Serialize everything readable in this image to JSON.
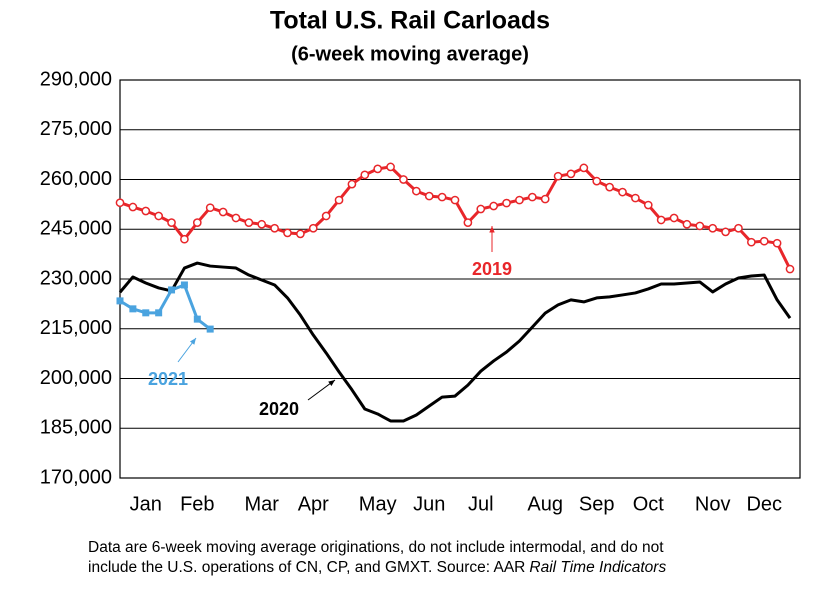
{
  "chart_data": {
    "type": "line",
    "title": "Total U.S. Rail Carloads",
    "subtitle": "(6-week moving average)",
    "note": [
      "Data are 6-week moving average originations, do not include intermodal, and do not",
      "include the U.S. operations of CN, CP, and GMXT.   Source: AAR"
    ],
    "note_italic": "Rail Time Indicators",
    "categories": [
      null,
      null,
      "Jan",
      null,
      null,
      null,
      "Feb",
      null,
      null,
      null,
      null,
      "Mar",
      null,
      null,
      null,
      "Apr",
      null,
      null,
      null,
      null,
      "May",
      null,
      null,
      null,
      "Jun",
      null,
      null,
      null,
      "Jul",
      null,
      null,
      null,
      null,
      "Aug",
      null,
      null,
      null,
      "Sep",
      null,
      null,
      null,
      "Oct",
      null,
      null,
      null,
      null,
      "Nov",
      null,
      null,
      null,
      "Dec",
      null,
      null
    ],
    "ylim": [
      170000,
      290000
    ],
    "yticks": [
      {
        "value": 170000,
        "label": "170,000"
      },
      {
        "value": 185000,
        "label": "185,000"
      },
      {
        "value": 200000,
        "label": "200,000"
      },
      {
        "value": 215000,
        "label": "215,000"
      },
      {
        "value": 230000,
        "label": "230,000"
      },
      {
        "value": 245000,
        "label": "245,000"
      },
      {
        "value": 260000,
        "label": "260,000"
      },
      {
        "value": 275000,
        "label": "275,000"
      },
      {
        "value": 290000,
        "label": "290,000"
      }
    ],
    "grid": true,
    "series": [
      {
        "name": "2019",
        "color": "#e8262a",
        "marker": "circle",
        "values": [
          253000,
          251700,
          250500,
          249000,
          247000,
          242000,
          247000,
          251500,
          250200,
          248400,
          247000,
          246500,
          245300,
          243900,
          243600,
          245300,
          249000,
          253800,
          258600,
          261400,
          263200,
          263800,
          260000,
          256500,
          255000,
          254700,
          253800,
          247000,
          251100,
          252000,
          252900,
          253800,
          254700,
          254100,
          261000,
          261700,
          263500,
          259500,
          257700,
          256200,
          254400,
          252300,
          247800,
          248400,
          246500,
          246000,
          245300,
          244200,
          245300,
          241100,
          241400,
          240800,
          233000
        ]
      },
      {
        "name": "2020",
        "color": "#000000",
        "marker": "none",
        "values": [
          226000,
          230600,
          228800,
          227300,
          226400,
          233300,
          234800,
          233900,
          233600,
          233300,
          231200,
          229700,
          228200,
          224300,
          219100,
          213100,
          207700,
          202000,
          196600,
          190800,
          189300,
          187200,
          187200,
          189000,
          191700,
          194400,
          194700,
          198000,
          202200,
          205300,
          208000,
          211300,
          215500,
          219700,
          222200,
          223700,
          223100,
          224300,
          224600,
          225200,
          225800,
          227000,
          228500,
          228500,
          228800,
          229100,
          226100,
          228500,
          230300,
          230900,
          231200,
          223700,
          218200
        ]
      },
      {
        "name": "2021",
        "color": "#4aa3df",
        "marker": "square",
        "values": [
          223400,
          221000,
          219800,
          219800,
          226700,
          228200,
          217900,
          214900,
          null,
          null,
          null,
          null,
          null,
          null,
          null,
          null,
          null,
          null,
          null,
          null,
          null,
          null,
          null,
          null,
          null,
          null,
          null,
          null,
          null,
          null,
          null,
          null,
          null,
          null,
          null,
          null,
          null,
          null,
          null,
          null,
          null,
          null,
          null,
          null,
          null,
          null,
          null,
          null,
          null,
          null,
          null,
          null,
          null
        ]
      }
    ]
  }
}
